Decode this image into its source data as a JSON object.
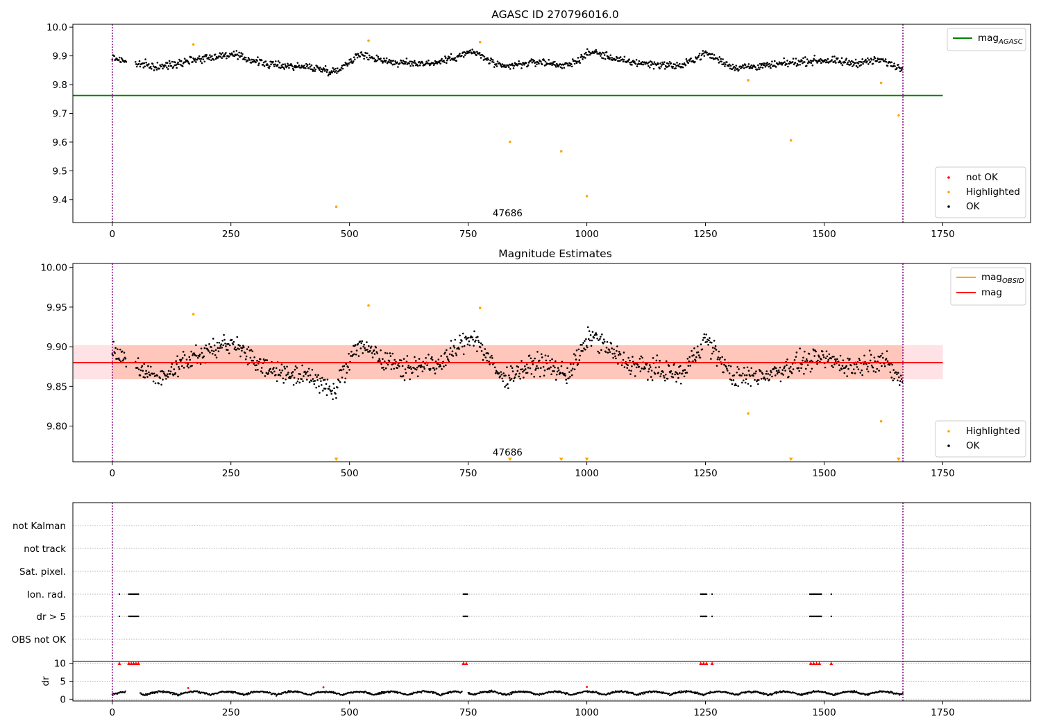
{
  "chart_data": [
    {
      "type": "scatter",
      "title": "AGASC ID 270796016.0",
      "xlim": [
        -83,
        1935
      ],
      "ylim": [
        9.32,
        10.01
      ],
      "x_ticks": [
        "0",
        "250",
        "500",
        "750",
        "1000",
        "1250",
        "1500",
        "1750"
      ],
      "x_tick_values": [
        0,
        250,
        500,
        750,
        1000,
        1250,
        1500,
        1750
      ],
      "y_ticks": [
        "10.0",
        "9.9",
        "9.8",
        "9.7",
        "9.6",
        "9.5",
        "9.4"
      ],
      "y_tick_values": [
        10.0,
        9.9,
        9.8,
        9.7,
        9.6,
        9.5,
        9.4
      ],
      "grid": false,
      "vlines": [
        0,
        1666
      ],
      "vline_color": "#800080",
      "annotation": {
        "text": "47686",
        "x": 833,
        "y": 9.35
      },
      "series": [
        {
          "name": "mag_AGASC",
          "kind": "line",
          "color": "#008000",
          "x": [
            -83,
            1750
          ],
          "y": [
            9.762,
            9.762
          ]
        },
        {
          "name": "not OK",
          "kind": "points",
          "color": "#ff0000",
          "x": [],
          "y": []
        },
        {
          "name": "Highlighted",
          "kind": "points",
          "color": "#ffa500",
          "x": [
            171,
            472,
            540,
            775,
            838,
            946,
            1000,
            1340,
            1430,
            1620,
            1657
          ],
          "y": [
            9.94,
            9.375,
            9.953,
            9.948,
            9.601,
            9.568,
            9.412,
            9.815,
            9.606,
            9.806,
            9.693
          ]
        },
        {
          "name": "OK",
          "kind": "points",
          "color": "#000000",
          "x": [
            0,
            1666
          ],
          "y": [
            9.88,
            9.88
          ],
          "note_trend": [
            [
              0,
              9.895
            ],
            [
              40,
              9.875
            ],
            [
              100,
              9.86
            ],
            [
              160,
              9.885
            ],
            [
              250,
              9.905
            ],
            [
              330,
              9.87
            ],
            [
              420,
              9.86
            ],
            [
              470,
              9.845
            ],
            [
              520,
              9.905
            ],
            [
              600,
              9.875
            ],
            [
              680,
              9.875
            ],
            [
              760,
              9.915
            ],
            [
              820,
              9.86
            ],
            [
              900,
              9.88
            ],
            [
              960,
              9.865
            ],
            [
              1010,
              9.915
            ],
            [
              1080,
              9.88
            ],
            [
              1150,
              9.87
            ],
            [
              1200,
              9.865
            ],
            [
              1250,
              9.91
            ],
            [
              1310,
              9.86
            ],
            [
              1380,
              9.865
            ],
            [
              1450,
              9.88
            ],
            [
              1500,
              9.885
            ],
            [
              1560,
              9.875
            ],
            [
              1620,
              9.885
            ],
            [
              1666,
              9.855
            ]
          ]
        }
      ],
      "legend": [
        {
          "label": "mag",
          "sub": "AGASC",
          "position": "top-right"
        },
        {
          "label": "not OK",
          "position": "bottom-right"
        },
        {
          "label": "Highlighted",
          "position": "bottom-right"
        },
        {
          "label": "OK",
          "position": "bottom-right"
        }
      ]
    },
    {
      "type": "scatter",
      "title": "Magnitude Estimates",
      "xlim": [
        -83,
        1935
      ],
      "ylim": [
        9.755,
        10.005
      ],
      "x_ticks": [
        "0",
        "250",
        "500",
        "750",
        "1000",
        "1250",
        "1500",
        "1750"
      ],
      "x_tick_values": [
        0,
        250,
        500,
        750,
        1000,
        1250,
        1500,
        1750
      ],
      "y_ticks": [
        "10.00",
        "9.95",
        "9.90",
        "9.85",
        "9.80"
      ],
      "y_tick_values": [
        10.0,
        9.95,
        9.9,
        9.85,
        9.8
      ],
      "grid": false,
      "vlines": [
        0,
        1666
      ],
      "vline_color": "#800080",
      "annotation": {
        "text": "47686",
        "x": 833,
        "y": 9.762
      },
      "bands": [
        {
          "x": [
            -83,
            1750
          ],
          "y": [
            9.859,
            9.902
          ],
          "color": "#ffb6c1",
          "opacity": 0.4
        },
        {
          "x": [
            0,
            1666
          ],
          "y": [
            9.859,
            9.902
          ],
          "color": "#ffa07a",
          "opacity": 0.4
        }
      ],
      "series": [
        {
          "name": "mag_OBSID",
          "kind": "line",
          "color": "#ffa500",
          "x": [
            0,
            1666
          ],
          "y": [
            9.88,
            9.88
          ]
        },
        {
          "name": "mag",
          "kind": "line",
          "color": "#ff0000",
          "x": [
            -83,
            1750
          ],
          "y": [
            9.88,
            9.88
          ]
        },
        {
          "name": "Highlighted",
          "kind": "points",
          "color": "#ffa500",
          "x": [
            171,
            540,
            775,
            1340,
            1620
          ],
          "y": [
            9.941,
            9.952,
            9.949,
            9.816,
            9.806
          ]
        },
        {
          "name": "Highlighted (below range)",
          "kind": "down-markers",
          "color": "#ffa500",
          "x": [
            472,
            838,
            946,
            1000,
            1430,
            1657
          ],
          "y": [
            9.756,
            9.756,
            9.756,
            9.756,
            9.756,
            9.756
          ]
        },
        {
          "name": "OK",
          "kind": "points",
          "color": "#000000",
          "x": [],
          "y": []
        }
      ],
      "legend": [
        {
          "label": "mag",
          "sub": "OBSID",
          "position": "top-right"
        },
        {
          "label": "mag",
          "position": "top-right"
        },
        {
          "label": "Highlighted",
          "position": "bottom-right"
        },
        {
          "label": "OK",
          "position": "bottom-right"
        }
      ]
    },
    {
      "type": "scatter",
      "title": "",
      "xlim": [
        -83,
        1935
      ],
      "x_ticks": [
        "0",
        "250",
        "500",
        "750",
        "1000",
        "1250",
        "1500",
        "1750"
      ],
      "x_tick_values": [
        0,
        250,
        500,
        750,
        1000,
        1250,
        1500,
        1750
      ],
      "flag_rows": [
        "not Kalman",
        "not track",
        "Sat. pixel.",
        "Ion. rad.",
        "dr > 5",
        "OBS not OK"
      ],
      "flag_clusters": {
        "Ion. rad.": [
          [
            15,
            15
          ],
          [
            35,
            55
          ],
          [
            740,
            748
          ],
          [
            1240,
            1252
          ],
          [
            1264,
            1264
          ],
          [
            1470,
            1494
          ],
          [
            1515,
            1515
          ]
        ],
        "dr > 5": [
          [
            15,
            15
          ],
          [
            35,
            55
          ],
          [
            740,
            748
          ],
          [
            1240,
            1252
          ],
          [
            1264,
            1264
          ],
          [
            1470,
            1494
          ],
          [
            1515,
            1515
          ]
        ]
      },
      "dr_ylabel": "dr",
      "dr_yticks": [
        "10",
        "5",
        "0"
      ],
      "dr_ytick_values": [
        10,
        5,
        0
      ],
      "dr_ylim": [
        -0.5,
        10.5
      ],
      "dr_clip_markers": {
        "color": "#ff0000",
        "x": [
          15,
          35,
          40,
          45,
          50,
          55,
          740,
          746,
          1240,
          1246,
          1252,
          1264,
          1472,
          1478,
          1484,
          1490,
          1515
        ],
        "y": 10
      },
      "dr_outliers": {
        "color": "#ff0000",
        "x": [
          160,
          445,
          1000
        ],
        "y": [
          3.1,
          3.3,
          3.4
        ]
      },
      "vlines": [
        0,
        1666
      ],
      "vline_color": "#800080"
    }
  ]
}
